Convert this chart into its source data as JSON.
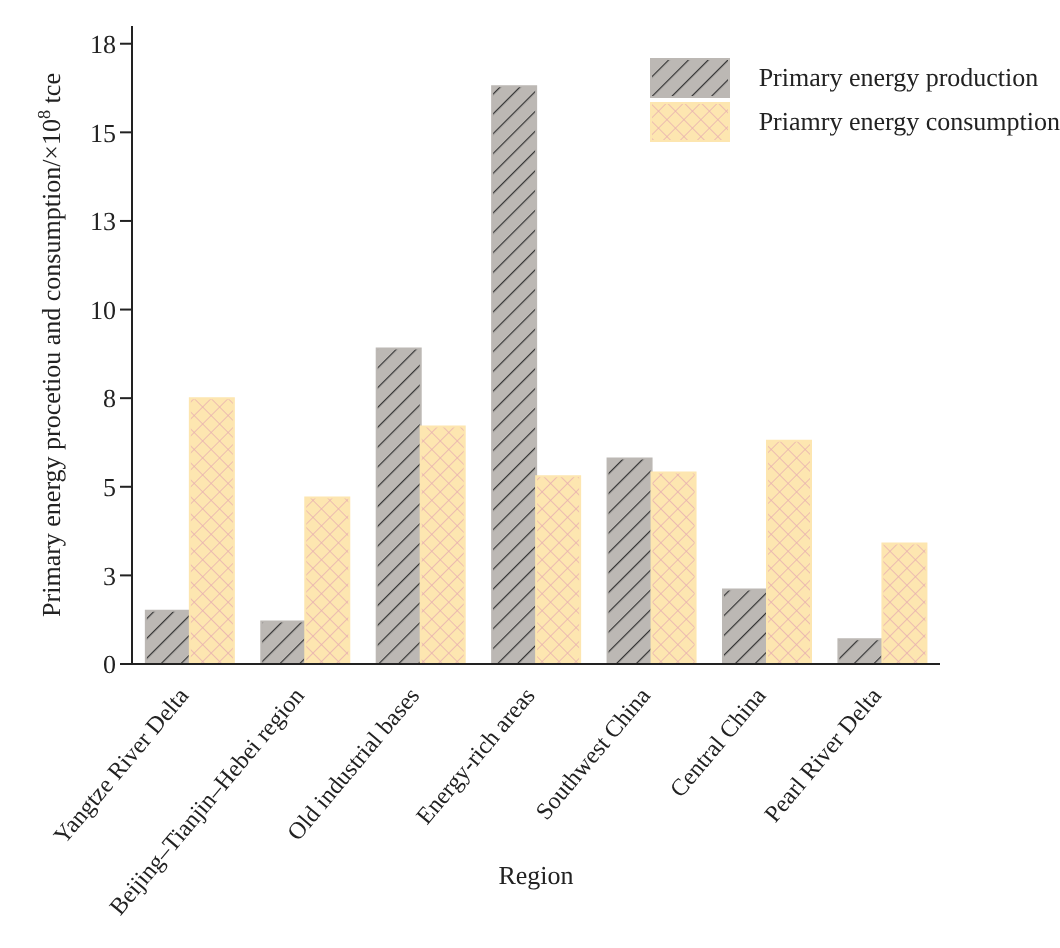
{
  "chart_data": {
    "type": "bar",
    "xlabel": "Region",
    "ylabel": "Primary energy procetiou and consumption/×10$^{8}$ tce",
    "categories": [
      "Yangtze River Delta",
      "Beijing–Tianjin–Hebei region",
      "Old industrial bases",
      "Energy-rich areas",
      "Southwest China",
      "Central China",
      "Pearl River Delta"
    ],
    "series": [
      {
        "name": "Primary energy production",
        "color": "#bcb8b4",
        "values": [
          1.5,
          1.2,
          8.9,
          16.3,
          5.8,
          2.1,
          0.7
        ]
      },
      {
        "name": "Priamry energy consumption",
        "color": "#fde6b0",
        "values": [
          7.5,
          4.7,
          6.7,
          5.3,
          5.4,
          6.3,
          3.4
        ]
      }
    ],
    "ylim": [
      0,
      18
    ],
    "yticks": [
      0,
      {
        "value": 2.5,
        "label": "3"
      },
      5,
      {
        "value": 7.5,
        "label": "8"
      },
      10,
      {
        "value": 12.5,
        "label": "13"
      },
      15,
      {
        "value": 17.5,
        "label": "18"
      }
    ],
    "legend": "top right",
    "grid": false
  }
}
